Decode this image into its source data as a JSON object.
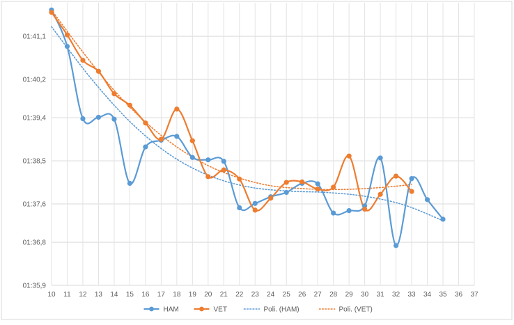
{
  "chart_data": {
    "type": "line",
    "x": [
      10,
      11,
      12,
      13,
      14,
      15,
      16,
      17,
      18,
      19,
      20,
      21,
      22,
      23,
      24,
      25,
      26,
      27,
      28,
      29,
      30,
      31,
      32,
      33,
      34,
      35
    ],
    "x_ticks": [
      "10",
      "11",
      "12",
      "13",
      "14",
      "15",
      "16",
      "17",
      "18",
      "19",
      "20",
      "21",
      "22",
      "23",
      "24",
      "25",
      "26",
      "27",
      "28",
      "29",
      "30",
      "31",
      "32",
      "33",
      "34",
      "35",
      "36",
      "37"
    ],
    "xlim": [
      10,
      37
    ],
    "y_unit": "seconds",
    "ylim": [
      95.9,
      101.8
    ],
    "y_ticks": [
      {
        "value": 95.9,
        "label": "01:35,9"
      },
      {
        "value": 96.8,
        "label": "01:36,8"
      },
      {
        "value": 97.6,
        "label": "01:37,6"
      },
      {
        "value": 98.5,
        "label": "01:38,5"
      },
      {
        "value": 99.4,
        "label": "01:39,4"
      },
      {
        "value": 100.2,
        "label": "01:40,2"
      },
      {
        "value": 101.1,
        "label": "01:41,1"
      }
    ],
    "grid": true,
    "legend_position": "bottom",
    "series": [
      {
        "name": "HAM",
        "color": "#5b9bd5",
        "style": "solid",
        "x": [
          10,
          11,
          12,
          13,
          14,
          15,
          16,
          17,
          18,
          19,
          20,
          21,
          22,
          23,
          24,
          25,
          26,
          27,
          28,
          29,
          30,
          31,
          32,
          33,
          34,
          35
        ],
        "values": [
          101.65,
          100.89,
          99.38,
          99.41,
          99.37,
          98.03,
          98.79,
          98.93,
          99.01,
          98.57,
          98.52,
          98.49,
          97.52,
          97.61,
          97.75,
          97.84,
          98.03,
          98.02,
          97.41,
          97.46,
          97.56,
          98.56,
          96.73,
          98.13,
          97.69,
          97.28
        ]
      },
      {
        "name": "VET",
        "color": "#ed7d31",
        "style": "solid",
        "x": [
          10,
          11,
          12,
          13,
          14,
          15,
          16,
          17,
          18,
          19,
          20,
          21,
          22,
          23,
          24,
          25,
          26,
          27,
          28,
          29,
          30,
          31,
          32,
          33
        ],
        "values": [
          101.6,
          101.13,
          100.6,
          100.37,
          99.9,
          99.66,
          99.29,
          98.95,
          99.58,
          98.92,
          98.17,
          98.31,
          98.12,
          97.47,
          97.72,
          98.05,
          98.06,
          97.91,
          97.95,
          98.6,
          97.49,
          97.8,
          98.18,
          97.86
        ]
      },
      {
        "name": "Poli. (HAM)",
        "color": "#5b9bd5",
        "style": "dotted",
        "trendline_of": "HAM",
        "x": [
          10,
          12.5,
          15,
          17.5,
          20,
          22.5,
          25,
          27.5,
          30,
          32.5,
          35
        ],
        "values": [
          101.3,
          100.23,
          99.32,
          98.64,
          98.2,
          97.96,
          97.87,
          97.84,
          97.76,
          97.58,
          97.25
        ]
      },
      {
        "name": "Poli. (VET)",
        "color": "#ed7d31",
        "style": "dotted",
        "trendline_of": "VET",
        "x": [
          10,
          12,
          14,
          16,
          18,
          20,
          22,
          24,
          26,
          28,
          30,
          32,
          33
        ],
        "values": [
          101.65,
          100.77,
          99.97,
          99.31,
          98.79,
          98.4,
          98.14,
          97.98,
          97.92,
          97.9,
          97.92,
          97.97,
          98.01
        ]
      }
    ]
  }
}
